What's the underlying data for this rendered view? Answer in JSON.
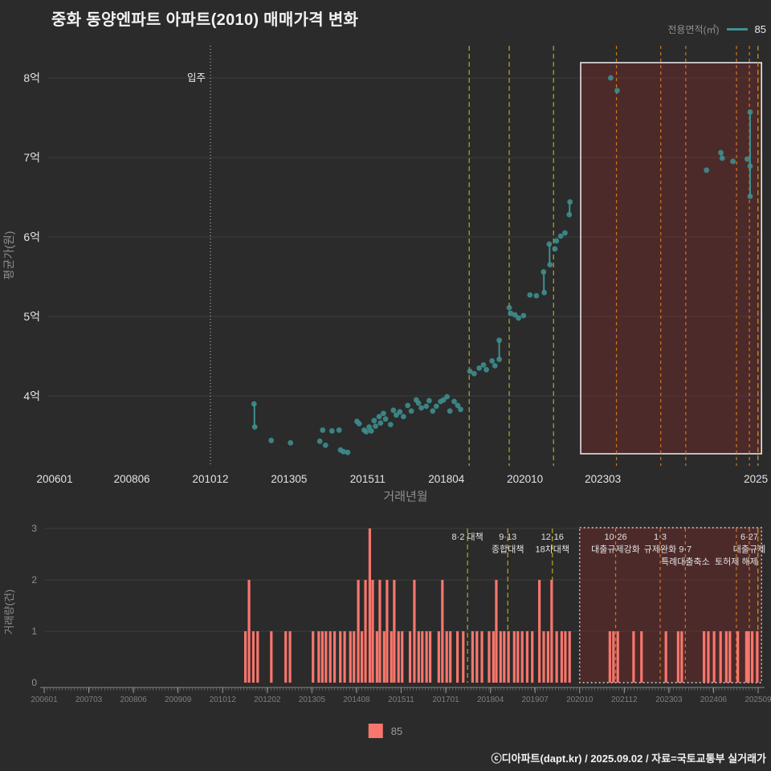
{
  "header": {
    "title": "중화 동양엔파트 아파트(2010) 매매가격 변화",
    "legend_label": "전용면적(㎡)",
    "legend_value": "85"
  },
  "bottom_legend": {
    "value": "85"
  },
  "footer": {
    "credit": "ⓒ디아파트(dapt.kr) / 2025.09.02 / 자료=국토교통부 실거래가"
  },
  "colors": {
    "background": "#2b2b2b",
    "series_teal": "#3f9090",
    "bar_salmon": "#f8766d",
    "event_yellow": "#b8a820",
    "event_orange": "#d2771e",
    "highlight_fill": "rgba(155,40,40,0.30)",
    "grid": "#3c3c3c",
    "tick_text": "#e3e3e3",
    "muted_text": "#8f8f8f"
  },
  "move_in": {
    "label": "입주",
    "pct": 22.7
  },
  "highlight": {
    "pct_start": 74.5,
    "pct_end": 99.8
  },
  "events": [
    {
      "pct": 58.9,
      "color": "yellow",
      "lines": [
        "8·2 대책"
      ]
    },
    {
      "pct": 64.5,
      "color": "yellow",
      "lines": [
        "9·13",
        "종합대책"
      ]
    },
    {
      "pct": 70.7,
      "color": "yellow",
      "lines": [
        "12·16",
        "18차대책"
      ]
    },
    {
      "pct": 79.5,
      "color": "orange",
      "lines": [
        "10·26",
        "대출규제강화"
      ]
    },
    {
      "pct": 85.7,
      "color": "orange",
      "lines": [
        "1·3",
        "규제완화"
      ]
    },
    {
      "pct": 89.2,
      "color": "orange",
      "lines": [
        "",
        "9·7",
        "특례대출축소"
      ]
    },
    {
      "pct": 96.3,
      "color": "orange",
      "lines": [
        "",
        "",
        "토허제 해제"
      ]
    },
    {
      "pct": 98.1,
      "color": "orange",
      "lines": [
        "6·27",
        "대출규제"
      ]
    },
    {
      "pct": 99.3,
      "color": "yellow",
      "lines": []
    }
  ],
  "chart_data": [
    {
      "type": "scatter",
      "series": "85",
      "xlabel": "거래년월",
      "ylabel": "평균가(원)",
      "ylim": [
        3.1,
        8.4
      ],
      "y_ticks": [
        {
          "label": "4억",
          "value": 4
        },
        {
          "label": "5억",
          "value": 5
        },
        {
          "label": "6억",
          "value": 6
        },
        {
          "label": "7억",
          "value": 7
        },
        {
          "label": "8억",
          "value": 8
        }
      ],
      "x_ticks": [
        {
          "label": "200601",
          "pct": 0.9
        },
        {
          "label": "200806",
          "pct": 11.7
        },
        {
          "label": "201012",
          "pct": 22.7
        },
        {
          "label": "201305",
          "pct": 33.7
        },
        {
          "label": "201511",
          "pct": 44.7
        },
        {
          "label": "201804",
          "pct": 55.7
        },
        {
          "label": "202010",
          "pct": 66.7
        },
        {
          "label": "202303",
          "pct": 77.6
        },
        {
          "label": "2025",
          "pct": 99.0
        }
      ],
      "points": [
        [
          28.8,
          3.9
        ],
        [
          28.9,
          3.61
        ],
        [
          31.2,
          3.44
        ],
        [
          33.9,
          3.41
        ],
        [
          38.0,
          3.43
        ],
        [
          38.4,
          3.57
        ],
        [
          38.8,
          3.38
        ],
        [
          39.7,
          3.56
        ],
        [
          40.7,
          3.57
        ],
        [
          40.9,
          3.32
        ],
        [
          41.3,
          3.3
        ],
        [
          41.9,
          3.29
        ],
        [
          43.2,
          3.68
        ],
        [
          43.5,
          3.65
        ],
        [
          44.2,
          3.57
        ],
        [
          44.5,
          3.55
        ],
        [
          44.9,
          3.61
        ],
        [
          45.2,
          3.56
        ],
        [
          45.6,
          3.69
        ],
        [
          45.8,
          3.62
        ],
        [
          46.3,
          3.74
        ],
        [
          46.5,
          3.66
        ],
        [
          46.9,
          3.78
        ],
        [
          47.2,
          3.71
        ],
        [
          47.9,
          3.64
        ],
        [
          48.3,
          3.82
        ],
        [
          48.7,
          3.76
        ],
        [
          49.2,
          3.8
        ],
        [
          49.7,
          3.74
        ],
        [
          50.3,
          3.88
        ],
        [
          50.8,
          3.81
        ],
        [
          51.5,
          3.95
        ],
        [
          51.8,
          3.91
        ],
        [
          52.2,
          3.85
        ],
        [
          52.9,
          3.87
        ],
        [
          53.3,
          3.94
        ],
        [
          53.8,
          3.81
        ],
        [
          54.3,
          3.87
        ],
        [
          54.9,
          3.93
        ],
        [
          55.3,
          3.95
        ],
        [
          55.8,
          3.99
        ],
        [
          56.2,
          3.81
        ],
        [
          56.8,
          3.93
        ],
        [
          57.3,
          3.88
        ],
        [
          57.7,
          3.83
        ],
        [
          59.0,
          4.31
        ],
        [
          59.6,
          4.28
        ],
        [
          60.3,
          4.35
        ],
        [
          60.9,
          4.39
        ],
        [
          61.3,
          4.33
        ],
        [
          62.1,
          4.44
        ],
        [
          62.5,
          4.38
        ],
        [
          63.1,
          4.46
        ],
        [
          63.1,
          4.7
        ],
        [
          64.5,
          5.11
        ],
        [
          64.7,
          5.04
        ],
        [
          65.3,
          5.02
        ],
        [
          65.8,
          4.98
        ],
        [
          66.5,
          5.01
        ],
        [
          67.4,
          5.27
        ],
        [
          68.3,
          5.26
        ],
        [
          69.3,
          5.56
        ],
        [
          69.4,
          5.3
        ],
        [
          70.1,
          5.91
        ],
        [
          70.2,
          5.65
        ],
        [
          70.9,
          5.85
        ],
        [
          71.1,
          5.95
        ],
        [
          71.7,
          6.01
        ],
        [
          72.3,
          6.05
        ],
        [
          72.9,
          6.28
        ],
        [
          73.0,
          6.44
        ],
        [
          78.7,
          8.0
        ],
        [
          79.6,
          7.84
        ],
        [
          92.1,
          6.84
        ],
        [
          94.1,
          7.06
        ],
        [
          94.3,
          6.99
        ],
        [
          95.8,
          6.95
        ],
        [
          97.8,
          6.98
        ],
        [
          98.2,
          7.57
        ],
        [
          98.2,
          6.89
        ],
        [
          98.2,
          6.51
        ]
      ],
      "segments": [
        [
          28.85,
          3.9,
          3.61
        ],
        [
          63.1,
          4.46,
          4.7
        ],
        [
          69.35,
          5.56,
          5.3
        ],
        [
          70.15,
          5.91,
          5.65
        ],
        [
          72.95,
          6.28,
          6.44
        ],
        [
          94.2,
          7.06,
          6.99
        ],
        [
          98.2,
          7.57,
          6.51
        ]
      ]
    },
    {
      "type": "bar",
      "ylabel": "거래량(건)",
      "ylim": [
        0,
        3
      ],
      "y_ticks": [
        0,
        1,
        2,
        3
      ],
      "x_ticks": [
        "200601",
        "200703",
        "200806",
        "200909",
        "201012",
        "201202",
        "201305",
        "201408",
        "201511",
        "201701",
        "201804",
        "201907",
        "202010",
        "202112",
        "202303",
        "202406",
        "202509"
      ],
      "bars": [
        [
          28.0,
          1
        ],
        [
          28.5,
          2
        ],
        [
          29.1,
          1
        ],
        [
          29.7,
          1
        ],
        [
          31.6,
          1
        ],
        [
          33.6,
          1
        ],
        [
          34.2,
          1
        ],
        [
          37.4,
          1
        ],
        [
          38.2,
          1
        ],
        [
          38.7,
          1
        ],
        [
          39.2,
          1
        ],
        [
          39.8,
          1
        ],
        [
          40.4,
          1
        ],
        [
          41.2,
          1
        ],
        [
          41.8,
          1
        ],
        [
          42.6,
          1
        ],
        [
          43.1,
          1
        ],
        [
          43.7,
          2
        ],
        [
          44.2,
          1
        ],
        [
          44.7,
          2
        ],
        [
          45.3,
          3
        ],
        [
          45.7,
          2
        ],
        [
          46.3,
          1
        ],
        [
          46.7,
          2
        ],
        [
          47.3,
          1
        ],
        [
          47.7,
          2
        ],
        [
          48.3,
          1
        ],
        [
          48.7,
          2
        ],
        [
          49.3,
          1
        ],
        [
          49.8,
          1
        ],
        [
          50.9,
          1
        ],
        [
          51.5,
          2
        ],
        [
          52.1,
          1
        ],
        [
          52.6,
          1
        ],
        [
          53.2,
          1
        ],
        [
          53.7,
          1
        ],
        [
          54.9,
          1
        ],
        [
          55.4,
          2
        ],
        [
          56.0,
          1
        ],
        [
          56.5,
          1
        ],
        [
          57.5,
          1
        ],
        [
          58.3,
          1
        ],
        [
          59.6,
          1
        ],
        [
          60.2,
          1
        ],
        [
          60.9,
          1
        ],
        [
          61.9,
          1
        ],
        [
          62.5,
          1
        ],
        [
          62.9,
          2
        ],
        [
          63.5,
          1
        ],
        [
          64.0,
          1
        ],
        [
          64.6,
          1
        ],
        [
          65.4,
          1
        ],
        [
          65.9,
          1
        ],
        [
          66.5,
          1
        ],
        [
          67.2,
          1
        ],
        [
          67.9,
          1
        ],
        [
          68.9,
          2
        ],
        [
          69.5,
          1
        ],
        [
          70.1,
          1
        ],
        [
          70.6,
          2
        ],
        [
          71.3,
          1
        ],
        [
          72.0,
          1
        ],
        [
          72.5,
          1
        ],
        [
          73.1,
          1
        ],
        [
          78.7,
          1
        ],
        [
          79.2,
          1
        ],
        [
          79.8,
          1
        ],
        [
          82.0,
          1
        ],
        [
          83.1,
          1
        ],
        [
          86.5,
          1
        ],
        [
          88.2,
          1
        ],
        [
          88.7,
          1
        ],
        [
          91.8,
          1
        ],
        [
          92.4,
          1
        ],
        [
          93.2,
          1
        ],
        [
          94.1,
          1
        ],
        [
          94.9,
          1
        ],
        [
          95.4,
          1
        ],
        [
          96.5,
          1
        ],
        [
          97.7,
          1
        ],
        [
          98.0,
          1
        ],
        [
          98.5,
          1
        ],
        [
          99.2,
          1
        ]
      ]
    }
  ]
}
